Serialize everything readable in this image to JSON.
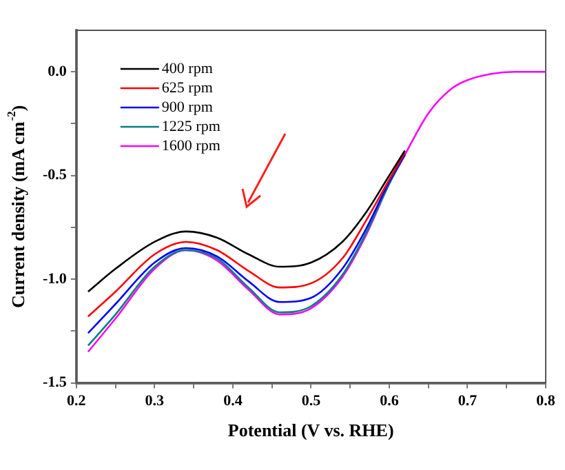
{
  "chart_data": {
    "type": "line",
    "xlabel": "Potential (V vs. RHE)",
    "ylabel": "Current density (mA cm$^{-2}$)",
    "x": [
      0.215,
      0.25,
      0.3,
      0.34,
      0.38,
      0.42,
      0.46,
      0.5,
      0.54,
      0.57,
      0.6,
      0.62,
      0.65,
      0.68,
      0.7,
      0.73,
      0.76,
      0.8
    ],
    "series": [
      {
        "name": "400 rpm",
        "color": "#000000",
        "values": [
          -1.06,
          -0.95,
          -0.82,
          -0.77,
          -0.8,
          -0.88,
          -0.94,
          -0.92,
          -0.82,
          -0.68,
          -0.5,
          -0.38,
          null,
          null,
          null,
          null,
          null,
          null
        ]
      },
      {
        "name": "625 rpm",
        "color": "#ff0000",
        "values": [
          -1.18,
          -1.06,
          -0.88,
          -0.82,
          -0.86,
          -0.96,
          -1.04,
          -1.02,
          -0.9,
          -0.72,
          -0.52,
          -0.39,
          null,
          null,
          null,
          null,
          null,
          null
        ]
      },
      {
        "name": "900 rpm",
        "color": "#0000ff",
        "values": [
          -1.26,
          -1.12,
          -0.92,
          -0.85,
          -0.89,
          -1.01,
          -1.11,
          -1.09,
          -0.95,
          -0.76,
          -0.53,
          -0.4,
          null,
          null,
          null,
          null,
          null,
          null
        ]
      },
      {
        "name": "1225 rpm",
        "color": "#008080",
        "values": [
          -1.32,
          -1.17,
          -0.94,
          -0.86,
          -0.9,
          -1.04,
          -1.16,
          -1.13,
          -0.98,
          -0.78,
          -0.54,
          -0.4,
          null,
          null,
          null,
          null,
          null,
          null
        ]
      },
      {
        "name": "1600 rpm",
        "color": "#ff00ff",
        "values": [
          -1.35,
          -1.19,
          -0.95,
          -0.86,
          -0.91,
          -1.05,
          -1.17,
          -1.14,
          -0.99,
          -0.79,
          -0.54,
          -0.4,
          -0.2,
          -0.08,
          -0.04,
          -0.01,
          0,
          0
        ]
      }
    ],
    "xlim": [
      0.2,
      0.8
    ],
    "xticks": [
      0.2,
      {
        "value": 0.25,
        "label": null
      },
      0.3,
      {
        "value": 0.35,
        "label": null
      },
      0.4,
      {
        "value": 0.45,
        "label": null
      },
      0.5,
      {
        "value": 0.55,
        "label": null
      },
      0.6,
      {
        "value": 0.65,
        "label": null
      },
      0.7,
      {
        "value": 0.75,
        "label": null
      },
      0.8
    ],
    "ylim": [
      -1.5,
      0.2
    ],
    "yticks": [
      {
        "value": -1.5,
        "label": "-1.5"
      },
      {
        "value": -1.25,
        "label": null
      },
      {
        "value": -1,
        "label": "-1.0"
      },
      {
        "value": -0.75,
        "label": null
      },
      {
        "value": -0.5,
        "label": "-0.5"
      },
      {
        "value": -0.25,
        "label": null
      },
      {
        "value": 0,
        "label": "0.0"
      }
    ],
    "grid": false,
    "legend": "top left",
    "marker": "none",
    "line_style": "solid"
  }
}
